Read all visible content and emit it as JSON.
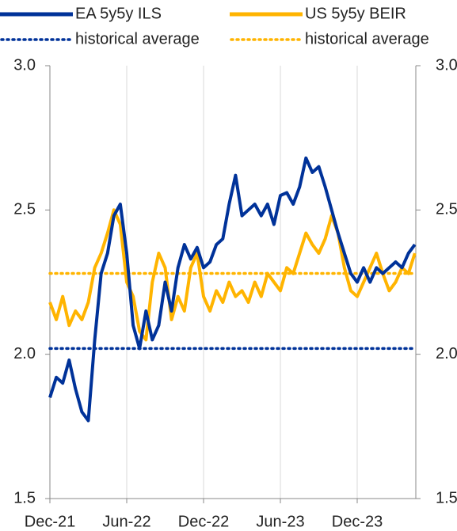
{
  "chart_data": {
    "type": "line",
    "categories": [
      "Dec-21",
      null,
      null,
      null,
      null,
      null,
      null,
      null,
      null,
      null,
      null,
      null,
      "Jun-22",
      null,
      null,
      null,
      null,
      null,
      null,
      null,
      null,
      null,
      null,
      null,
      "Dec-22",
      null,
      null,
      null,
      null,
      null,
      null,
      null,
      null,
      null,
      null,
      null,
      "Jun-23",
      null,
      null,
      null,
      null,
      null,
      null,
      null,
      null,
      null,
      null,
      null,
      "Dec-23",
      null,
      null,
      null,
      null,
      null,
      null,
      null,
      null,
      null
    ],
    "series": [
      {
        "name": "EA 5y5y ILS",
        "color": "#003299",
        "values": [
          1.85,
          1.92,
          1.9,
          1.98,
          1.88,
          1.8,
          1.77,
          2.05,
          2.28,
          2.35,
          2.48,
          2.52,
          2.35,
          2.1,
          2.02,
          2.15,
          2.05,
          2.1,
          2.25,
          2.15,
          2.3,
          2.38,
          2.33,
          2.37,
          2.3,
          2.32,
          2.38,
          2.4,
          2.52,
          2.62,
          2.48,
          2.5,
          2.52,
          2.48,
          2.52,
          2.45,
          2.55,
          2.56,
          2.52,
          2.58,
          2.68,
          2.63,
          2.65,
          2.58,
          2.5,
          2.42,
          2.35,
          2.28,
          2.25,
          2.3,
          2.25,
          2.3,
          2.28,
          2.3,
          2.32,
          2.3,
          2.35,
          2.38
        ]
      },
      {
        "name": "US 5y5y BEIR",
        "color": "#FFB400",
        "values": [
          2.18,
          2.12,
          2.2,
          2.1,
          2.15,
          2.12,
          2.18,
          2.3,
          2.35,
          2.42,
          2.5,
          2.45,
          2.25,
          2.2,
          2.08,
          2.05,
          2.25,
          2.35,
          2.3,
          2.12,
          2.2,
          2.15,
          2.3,
          2.35,
          2.2,
          2.15,
          2.22,
          2.18,
          2.25,
          2.2,
          2.22,
          2.18,
          2.25,
          2.2,
          2.28,
          2.25,
          2.22,
          2.3,
          2.28,
          2.35,
          2.42,
          2.38,
          2.35,
          2.4,
          2.48,
          2.42,
          2.3,
          2.22,
          2.2,
          2.25,
          2.3,
          2.35,
          2.28,
          2.22,
          2.25,
          2.3,
          2.28,
          2.35
        ]
      }
    ],
    "reference_lines": [
      {
        "name": "historical average",
        "color": "#003299",
        "value": 2.02
      },
      {
        "name": "historical average",
        "color": "#FFB400",
        "value": 2.28
      }
    ],
    "ylim": [
      1.5,
      3.0
    ],
    "yticks": [
      1.5,
      {
        "value": 2.0,
        "label": "2.0"
      },
      2.5,
      {
        "value": 3.0,
        "label": "3.0"
      }
    ],
    "y2lim": [
      1.5,
      3.0
    ],
    "y2ticks": [
      1.5,
      {
        "value": 2.0,
        "label": "2.0"
      },
      2.5,
      {
        "value": 3.0,
        "label": "3.0"
      }
    ],
    "grid": true
  }
}
